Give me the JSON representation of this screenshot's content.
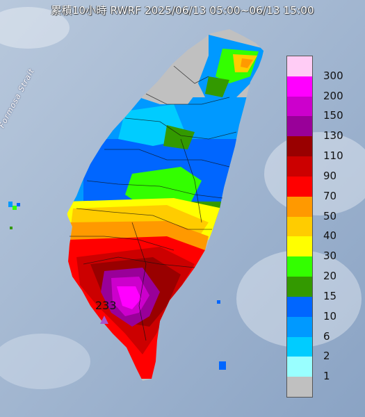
{
  "title": "累積10小時 RWRF 2025/06/13 05:00~06/13 15:00",
  "strait_label": "Formosa Strait",
  "peak_value": "233",
  "legend": [
    {
      "label": "300",
      "color": "#ffccf5"
    },
    {
      "label": "200",
      "color": "#ff00ff"
    },
    {
      "label": "150",
      "color": "#cc00cc"
    },
    {
      "label": "130",
      "color": "#990099"
    },
    {
      "label": "110",
      "color": "#990000"
    },
    {
      "label": "90",
      "color": "#cc0000"
    },
    {
      "label": "70",
      "color": "#ff0000"
    },
    {
      "label": "50",
      "color": "#ff9900"
    },
    {
      "label": "40",
      "color": "#ffcc00"
    },
    {
      "label": "30",
      "color": "#ffff00"
    },
    {
      "label": "20",
      "color": "#33ff00"
    },
    {
      "label": "15",
      "color": "#339900"
    },
    {
      "label": "10",
      "color": "#0066ff"
    },
    {
      "label": "6",
      "color": "#0099ff"
    },
    {
      "label": "2",
      "color": "#00ccff"
    },
    {
      "label": "1",
      "color": "#99ffff"
    },
    {
      "label": "",
      "color": "#c0c0c0"
    }
  ]
}
